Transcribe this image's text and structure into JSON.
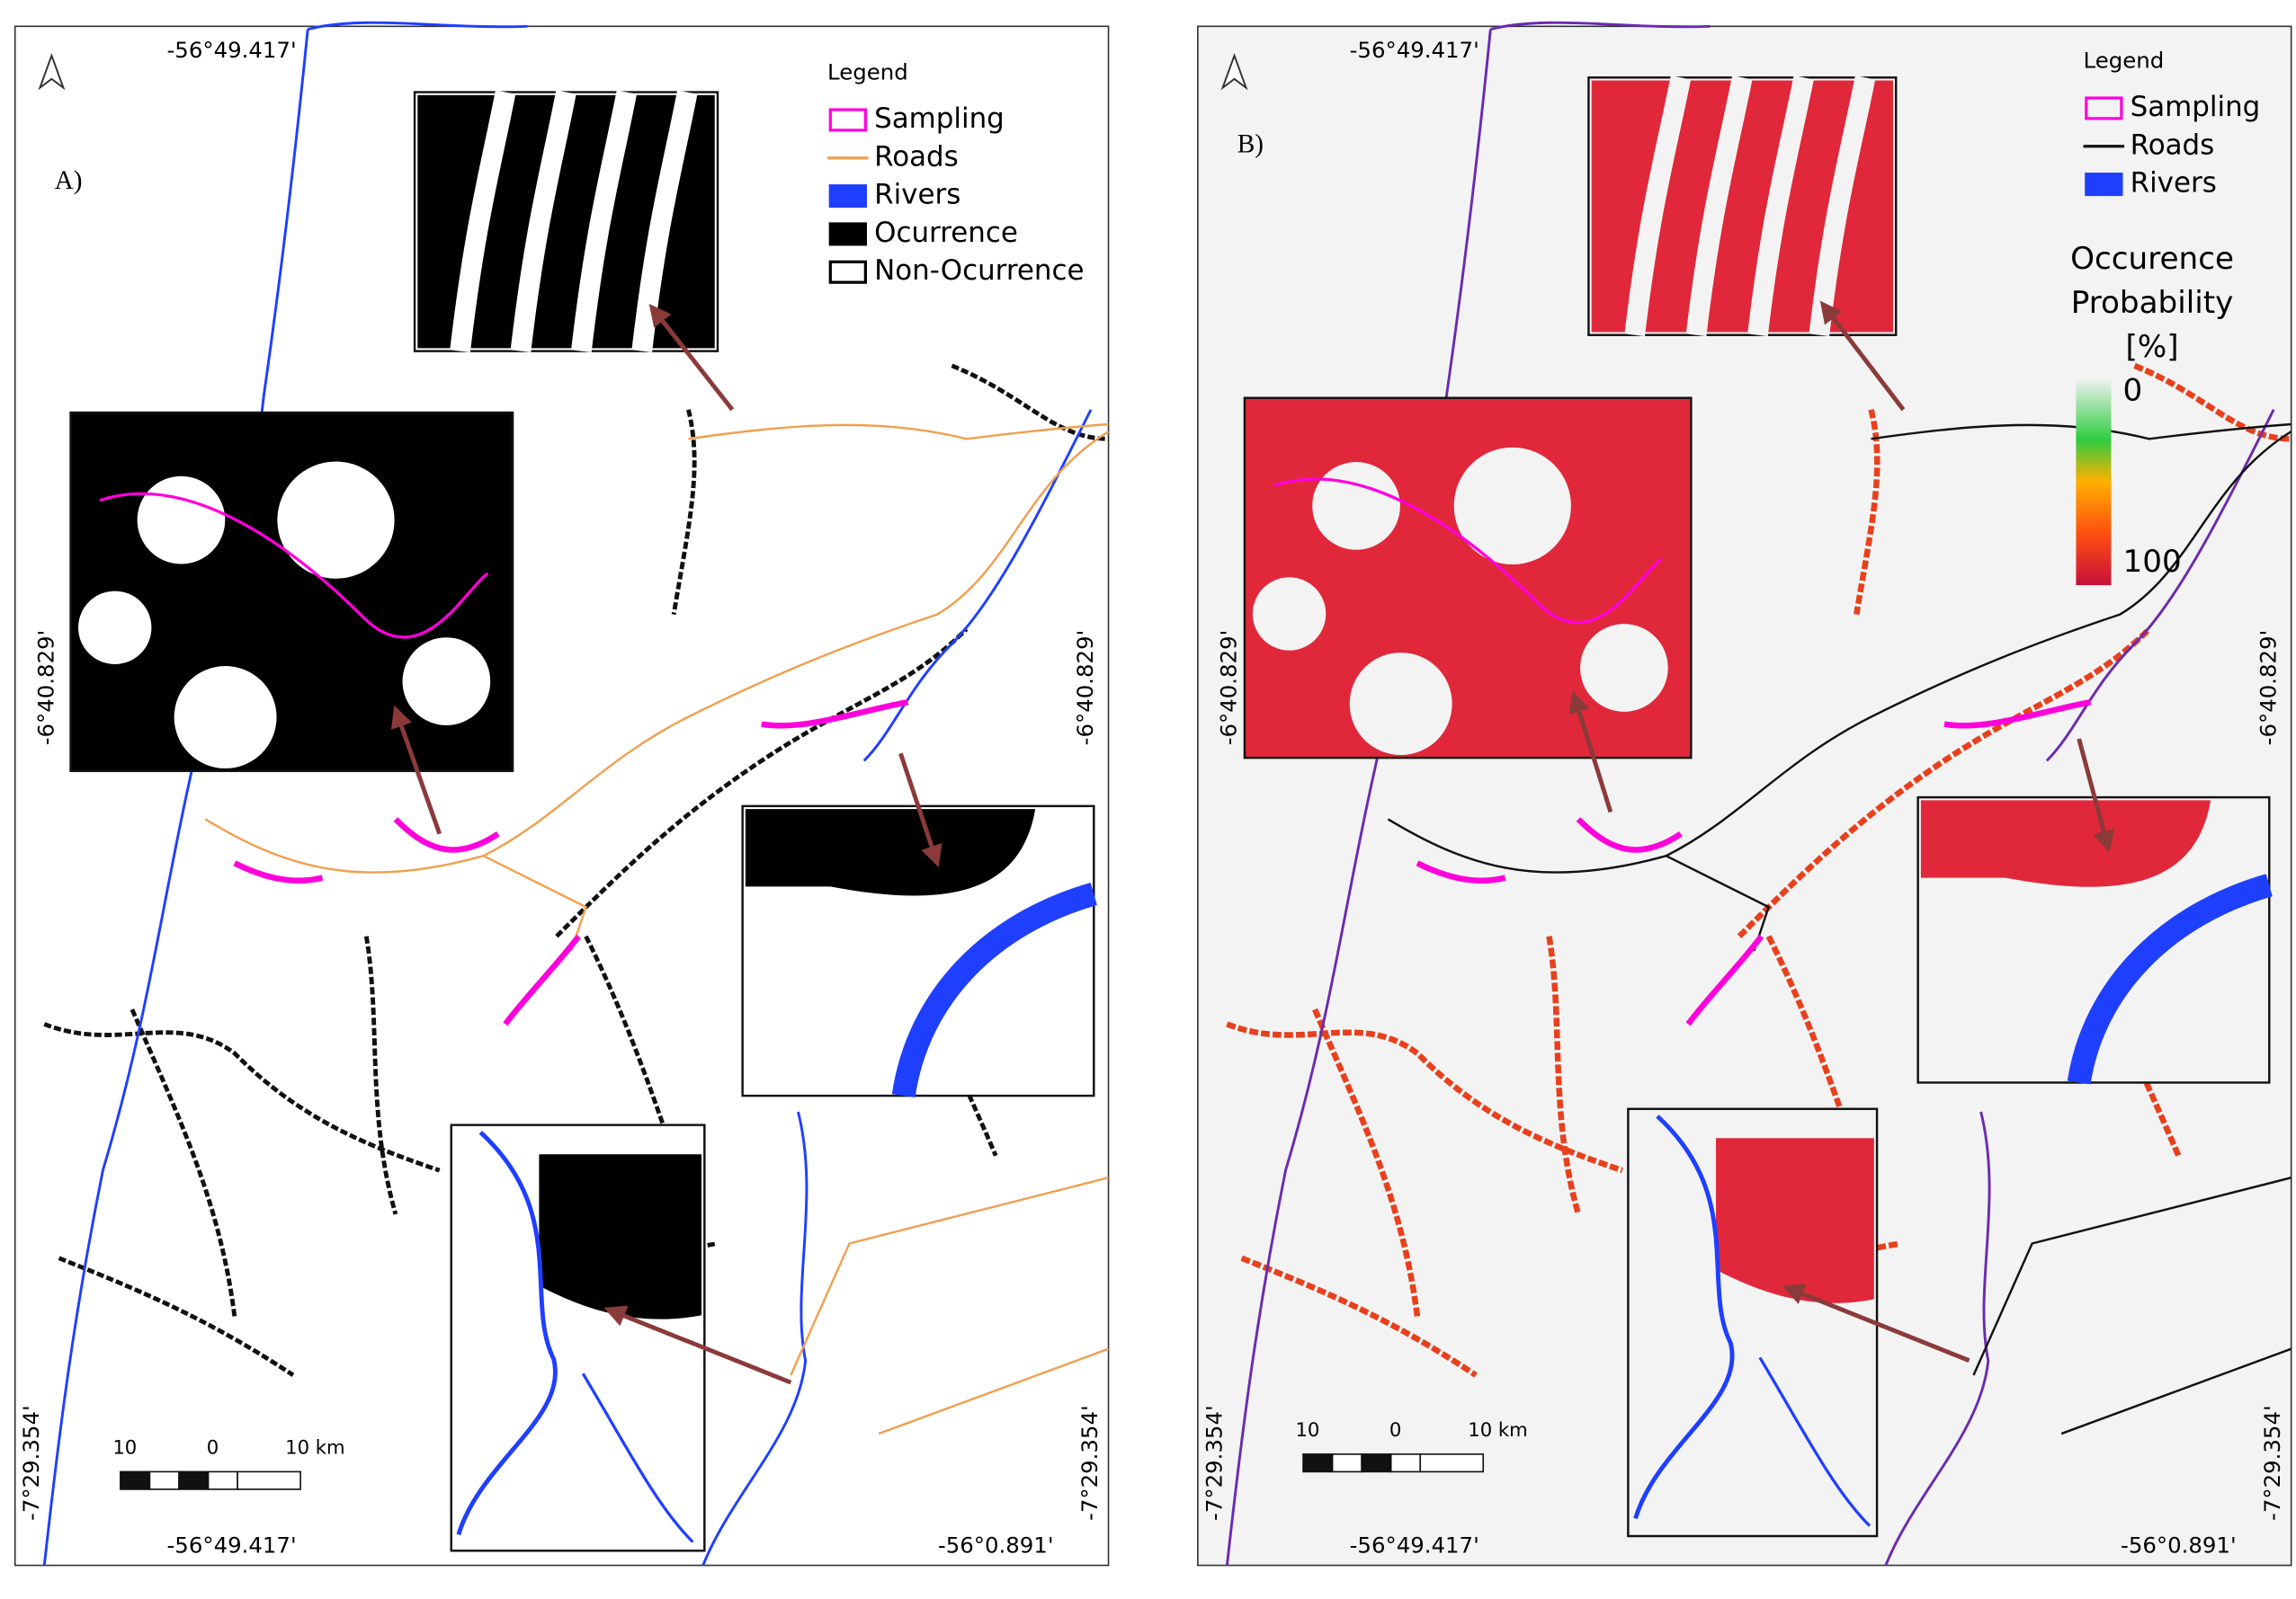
{
  "panels": [
    {
      "label": "A)",
      "legend": {
        "title": "Legend",
        "items": [
          "Sampling",
          "Roads",
          "Rivers",
          "Ocurrence",
          "Non-Ocurrence"
        ]
      },
      "coordinates": {
        "top": "-56°49.417'",
        "bottom_left": "-56°49.417'",
        "bottom_right": "-56°0.891'",
        "left_upper": "-6°40.829'",
        "right_upper": "-6°40.829'",
        "left_lower": "-7°29.354'",
        "right_lower": "-7°29.354'"
      },
      "scale_bar": [
        "10",
        "0",
        "10 km"
      ]
    },
    {
      "label": "B)",
      "legend": {
        "title": "Legend",
        "items": [
          "Sampling",
          "Roads",
          "Rivers"
        ]
      },
      "colorbar": {
        "title": [
          "Occurence",
          "Probability",
          "[%]"
        ],
        "min": 0,
        "max": 100
      },
      "coordinates": {
        "top": "-56°49.417'",
        "bottom_left": "-56°49.417'",
        "bottom_right": "-56°0.891'",
        "left_upper": "-6°40.829'",
        "right_upper": "-6°40.829'",
        "left_lower": "-7°29.354'",
        "right_lower": "-7°29.354'"
      },
      "scale_bar": [
        "10",
        "0",
        "10 km"
      ]
    }
  ]
}
